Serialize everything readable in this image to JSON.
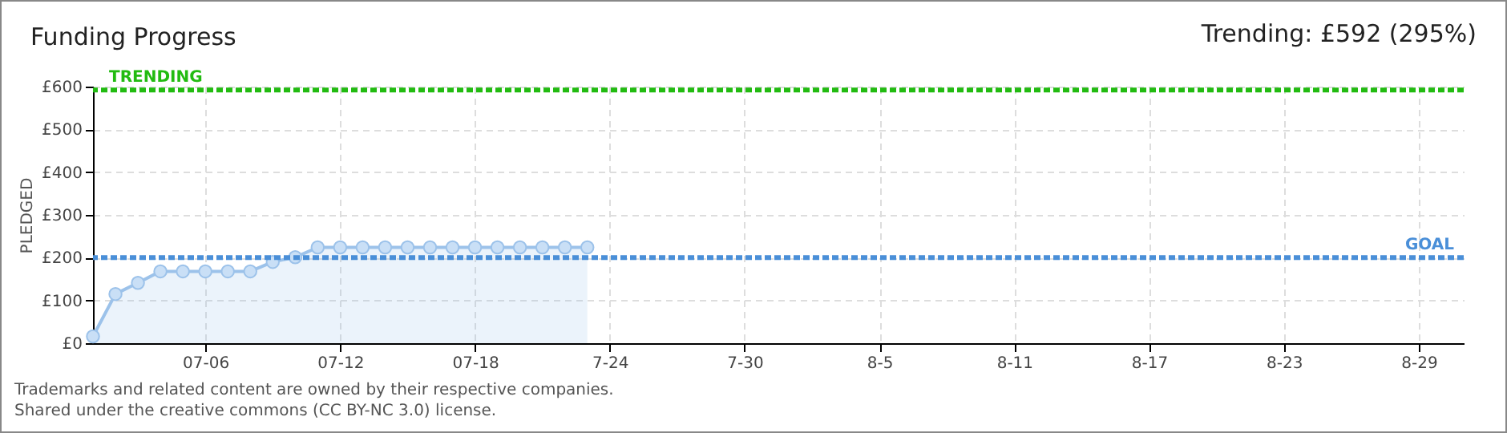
{
  "chart_data": {
    "type": "area",
    "title": "Funding Progress",
    "ylabel": "PLEDGED",
    "annotations": [
      "Trending: £592 (295%)",
      "Trademarks and related content are owned by their respective companies.",
      "Shared under the creative commons (CC BY-NC 3.0) license."
    ],
    "x": [
      "--07-01",
      "--07-02",
      "--07-03",
      "--07-04",
      "--07-05",
      "--07-06",
      "--07-07",
      "--07-08",
      "--07-09",
      "--07-10",
      "--07-11",
      "--07-12",
      "--07-13",
      "--07-14",
      "--07-15",
      "--07-16",
      "--07-17",
      "--07-18",
      "--07-19",
      "--07-20",
      "--07-21",
      "--07-22",
      "--07-23"
    ],
    "series": [
      {
        "color": "#9cc2ea",
        "values": [
          16,
          115,
          141,
          168,
          168,
          168,
          168,
          168,
          190,
          201,
          224,
          224,
          224,
          224,
          224,
          224,
          224,
          224,
          224,
          224,
          224,
          224,
          224
        ]
      }
    ],
    "xlim": [
      "--07-01",
      "--08-31"
    ],
    "xticks": [
      {
        "value": "--07-06",
        "label": "07-06"
      },
      {
        "value": "--07-12",
        "label": "07-12"
      },
      {
        "value": "--07-18",
        "label": "07-18"
      },
      {
        "value": "--07-24",
        "label": "7-24"
      },
      {
        "value": "--07-30",
        "label": "7-30"
      },
      {
        "value": "--08-05",
        "label": "8-5"
      },
      {
        "value": "--08-11",
        "label": "8-11"
      },
      {
        "value": "--08-17",
        "label": "8-17"
      },
      {
        "value": "--08-23",
        "label": "8-23"
      },
      {
        "value": "--08-29",
        "label": "8-29"
      }
    ],
    "ylim": [
      0,
      600
    ],
    "yticks": [
      {
        "value": 0,
        "label": "£0"
      },
      {
        "value": 100,
        "label": "£100"
      },
      {
        "value": 200,
        "label": "£200"
      },
      {
        "value": 300,
        "label": "£300"
      },
      {
        "value": 400,
        "label": "£400"
      },
      {
        "value": 500,
        "label": "£500"
      },
      {
        "value": 600,
        "label": "£600"
      }
    ],
    "ref_lines": [
      {
        "axis": "y",
        "value": 592,
        "label": "TRENDING",
        "color": "#22bb11",
        "line_style": "dashed"
      },
      {
        "axis": "y",
        "value": 200,
        "label": "GOAL",
        "color": "#4a8fd8",
        "line_style": "dashed"
      }
    ],
    "grid": true,
    "marker": "circle"
  }
}
